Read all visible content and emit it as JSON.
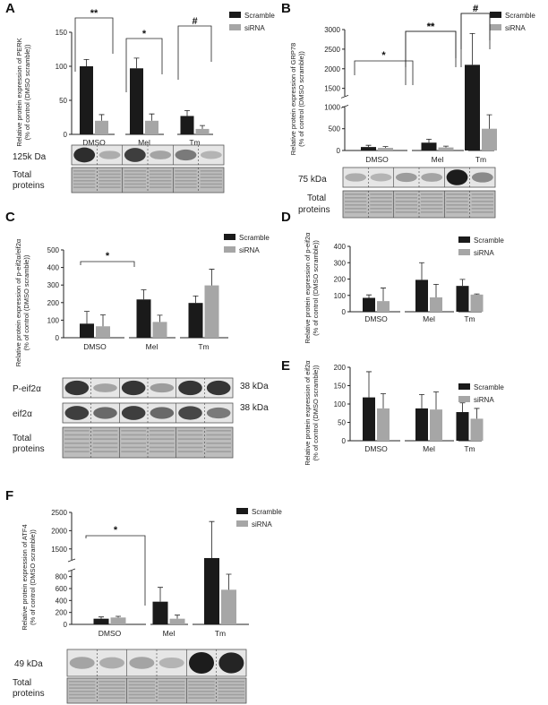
{
  "colors": {
    "scramble": "#1a1a1a",
    "sirna": "#a6a6a6",
    "blot_bg": "#e6e6e6",
    "total_bg": "#bdbdbd"
  },
  "chart_data": [
    {
      "id": "A",
      "letter": "A",
      "type": "bar",
      "ylabel_line1": "Relative protein expression of PERK",
      "ylabel_line2": "(% of control (DMSO scramble))",
      "categories": [
        "DMSO",
        "Mel",
        "Tm"
      ],
      "series": [
        {
          "name": "Scramble",
          "values": [
            100,
            97,
            27
          ],
          "errors": [
            10,
            15,
            8
          ]
        },
        {
          "name": "siRNA",
          "values": [
            20,
            20,
            8
          ],
          "errors": [
            9,
            10,
            5
          ]
        }
      ],
      "ylim": [
        0,
        150
      ],
      "yticks": [
        0,
        50,
        100,
        150
      ],
      "yticks_labels": [
        "0",
        "50",
        "100",
        "150"
      ],
      "legend": "top-right",
      "annotations": [
        {
          "text": "**",
          "group": 0,
          "type": "within"
        },
        {
          "text": "*",
          "group": 1,
          "type": "within"
        },
        {
          "text": "#",
          "group": 2,
          "type": "within"
        }
      ],
      "blot_labels": [
        "125k Da",
        "Total proteins"
      ]
    },
    {
      "id": "B",
      "letter": "B",
      "type": "bar",
      "ylabel_line1": "Relative protein expression of GRP78",
      "ylabel_line2": "(% of control (DMSO scramble))",
      "categories": [
        "DMSO",
        "Mel",
        "Tm"
      ],
      "series": [
        {
          "name": "Scramble",
          "values": [
            80,
            180,
            2100
          ],
          "errors": [
            40,
            80,
            800
          ]
        },
        {
          "name": "siRNA",
          "values": [
            60,
            70,
            500
          ],
          "errors": [
            30,
            30,
            320
          ]
        }
      ],
      "axis_break": [
        1000,
        1300
      ],
      "ylim": [
        0,
        3000
      ],
      "yticks": [
        0,
        500,
        1000,
        1500,
        2000,
        2500,
        3000
      ],
      "yticks_labels": [
        "0",
        "500",
        "1000",
        "1500",
        "2000",
        "2500",
        "3000"
      ],
      "legend": "top-right",
      "annotations": [
        {
          "text": "*",
          "from": [
            0,
            0
          ],
          "to": [
            1,
            0
          ],
          "type": "between"
        },
        {
          "text": "**",
          "group": 1,
          "type": "within"
        },
        {
          "text": "#",
          "group": 2,
          "type": "within"
        }
      ],
      "blot_labels": [
        "75 kDa",
        "Total proteins"
      ]
    },
    {
      "id": "C",
      "letter": "C",
      "type": "bar",
      "ylabel_line1": "Relative protein expression of p-eif2α/eif2α",
      "ylabel_line2": "(% of control (DMSO scramble))",
      "categories": [
        "DMSO",
        "Mel",
        "Tm"
      ],
      "series": [
        {
          "name": "Scramble",
          "values": [
            80,
            218,
            198
          ],
          "errors": [
            70,
            55,
            40
          ]
        },
        {
          "name": "siRNA",
          "values": [
            65,
            90,
            298
          ],
          "errors": [
            65,
            38,
            92
          ]
        }
      ],
      "ylim": [
        0,
        500
      ],
      "yticks": [
        0,
        100,
        200,
        300,
        400,
        500
      ],
      "yticks_labels": [
        "0",
        "100",
        "200",
        "300",
        "400",
        "500"
      ],
      "legend": "top-right",
      "annotations": [
        {
          "text": "*",
          "from": [
            0,
            0
          ],
          "to": [
            1,
            0
          ],
          "type": "between"
        }
      ],
      "blot_labels": [
        "P-eif2α",
        "eif2α",
        "Total proteins"
      ],
      "blot_right_labels": [
        "38 kDa",
        "38 kDa"
      ]
    },
    {
      "id": "D",
      "letter": "D",
      "type": "bar",
      "ylabel_line1": "Relative protein expression of p-eif2α",
      "ylabel_line2": "(% of control (DMSO scramble))",
      "categories": [
        "DMSO",
        "Mel",
        "Tm"
      ],
      "series": [
        {
          "name": "Scramble",
          "values": [
            85,
            195,
            158
          ],
          "errors": [
            18,
            105,
            40
          ]
        },
        {
          "name": "siRNA",
          "values": [
            65,
            88,
            105
          ],
          "errors": [
            80,
            80,
            4
          ]
        }
      ],
      "ylim": [
        0,
        400
      ],
      "yticks": [
        0,
        100,
        200,
        300,
        400
      ],
      "yticks_labels": [
        "0",
        "100",
        "200",
        "300",
        "400"
      ],
      "legend": "top-right",
      "annotations": []
    },
    {
      "id": "E",
      "letter": "E",
      "type": "bar",
      "ylabel_line1": "Relative protein expression of eif2α",
      "ylabel_line2": "(% of control (DMSO scramble))",
      "categories": [
        "DMSO",
        "Mel",
        "Tm"
      ],
      "series": [
        {
          "name": "Scramble",
          "values": [
            118,
            88,
            78
          ],
          "errors": [
            70,
            38,
            25
          ]
        },
        {
          "name": "siRNA",
          "values": [
            88,
            85,
            60
          ],
          "errors": [
            40,
            48,
            28
          ]
        }
      ],
      "ylim": [
        0,
        200
      ],
      "yticks": [
        0,
        50,
        100,
        150,
        200
      ],
      "yticks_labels": [
        "0",
        "50",
        "100",
        "150",
        "200"
      ],
      "legend": "top-right",
      "annotations": []
    },
    {
      "id": "F",
      "letter": "F",
      "type": "bar",
      "ylabel_line1": "Relative protein expression of ATF4",
      "ylabel_line2": "(% of control (DMSO scramble))",
      "categories": [
        "DMSO",
        "Mel",
        "Tm"
      ],
      "series": [
        {
          "name": "Scramble",
          "values": [
            95,
            380,
            1250
          ],
          "errors": [
            30,
            240,
            1000
          ]
        },
        {
          "name": "siRNA",
          "values": [
            115,
            95,
            580
          ],
          "errors": [
            20,
            60,
            260
          ]
        }
      ],
      "axis_break": [
        900,
        1200
      ],
      "ylim": [
        0,
        2500
      ],
      "yticks": [
        0,
        200,
        400,
        600,
        800,
        1500,
        2000,
        2500
      ],
      "yticks_labels": [
        "0",
        "200",
        "400",
        "600",
        "800",
        "1500",
        "2000",
        "2500"
      ],
      "legend": "top-right",
      "annotations": [
        {
          "text": "*",
          "from": [
            0,
            0
          ],
          "to": [
            1,
            0
          ],
          "type": "between"
        }
      ],
      "blot_labels": [
        "49 kDa",
        "Total proteins"
      ]
    }
  ]
}
